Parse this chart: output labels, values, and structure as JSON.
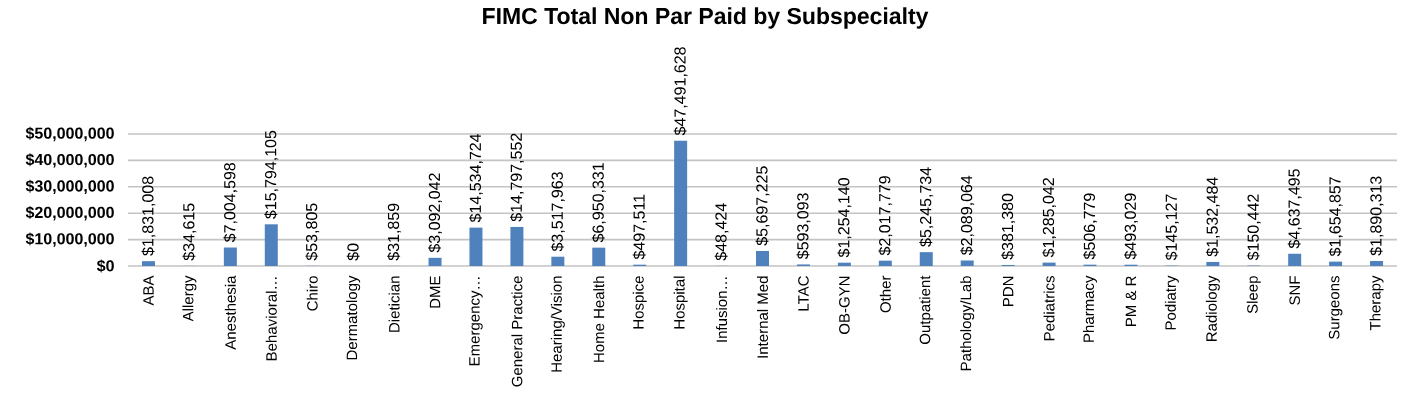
{
  "chart_data": {
    "type": "bar",
    "title": "FIMC Total Non Par Paid by Subspecialty",
    "categories": [
      "ABA",
      "Allergy",
      "Anesthesia",
      "Behavioral…",
      "Chiro",
      "Dermatology",
      "Dietician",
      "DME",
      "Emergency…",
      "General Practice",
      "Hearing/Vision",
      "Home Health",
      "Hospice",
      "Hospital",
      "Infusion…",
      "Internal Med",
      "LTAC",
      "OB-GYN",
      "Other",
      "Outpatient",
      "Pathology/Lab",
      "PDN",
      "Pediatrics",
      "Pharmacy",
      "PM & R",
      "Podiatry",
      "Radiology",
      "Sleep",
      "SNF",
      "Surgeons",
      "Therapy"
    ],
    "values": [
      1831008,
      34615,
      7004598,
      15794105,
      53805,
      0,
      31859,
      3092042,
      14534724,
      14797552,
      3517963,
      6950331,
      497511,
      47491628,
      48424,
      5697225,
      593093,
      1254140,
      2017779,
      5245734,
      2089064,
      381380,
      1285042,
      506779,
      493029,
      145127,
      1532484,
      150442,
      4637495,
      1654857,
      1890313
    ],
    "value_labels": [
      "$1,831,008",
      "$34,615",
      "$7,004,598",
      "$15,794,105",
      "$53,805",
      "$0",
      "$31,859",
      "$3,092,042",
      "$14,534,724",
      "$14,797,552",
      "$3,517,963",
      "$6,950,331",
      "$497,511",
      "$47,491,628",
      "$48,424",
      "$5,697,225",
      "$593,093",
      "$1,254,140",
      "$2,017,779",
      "$5,245,734",
      "$2,089,064",
      "$381,380",
      "$1,285,042",
      "$506,779",
      "$493,029",
      "$145,127",
      "$1,532,484",
      "$150,442",
      "$4,637,495",
      "$1,654,857",
      "$1,890,313"
    ],
    "color": "#4f81bd",
    "ylim": [
      0,
      50000000
    ],
    "yticks": [
      {
        "value": 0,
        "label": "$0"
      },
      {
        "value": 10000000,
        "label": "$10,000,000"
      },
      {
        "value": 20000000,
        "label": "$20,000,000"
      },
      {
        "value": 30000000,
        "label": "$30,000,000"
      },
      {
        "value": 40000000,
        "label": "$40,000,000"
      },
      {
        "value": 50000000,
        "label": "$50,000,000"
      }
    ],
    "grid": "y"
  }
}
